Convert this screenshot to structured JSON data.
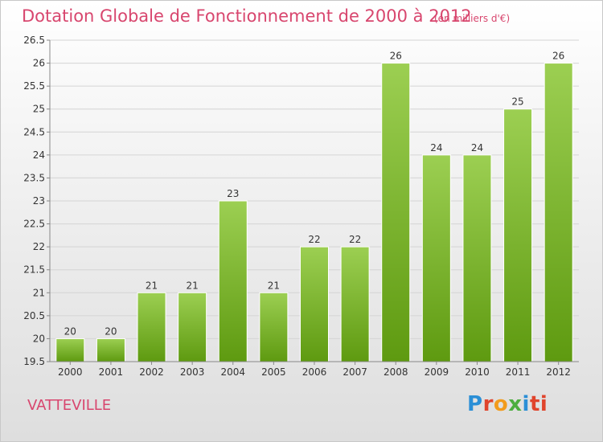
{
  "header": {
    "title": "Dotation Globale de Fonctionnement de 2000 à 2012",
    "subtitle": "(en milliers d'€)"
  },
  "footer": {
    "town": "VATTEVILLE",
    "brand": [
      "P",
      "r",
      "o",
      "x",
      "i",
      "ti"
    ]
  },
  "colors": {
    "bar_top": "#9ccf52",
    "bar_bottom": "#5e9a10",
    "title": "#d8466e",
    "grid": "#d4d4d4"
  },
  "chart_data": {
    "type": "bar",
    "title": "Dotation Globale de Fonctionnement de 2000 à 2012",
    "subtitle": "(en milliers d'€)",
    "categories": [
      "2000",
      "2001",
      "2002",
      "2003",
      "2004",
      "2005",
      "2006",
      "2007",
      "2008",
      "2009",
      "2010",
      "2011",
      "2012"
    ],
    "values": [
      20,
      20,
      21,
      21,
      23,
      21,
      22,
      22,
      26,
      24,
      24,
      25,
      26
    ],
    "data_labels": [
      "20",
      "20",
      "21",
      "21",
      "23",
      "21",
      "22",
      "22",
      "26",
      "24",
      "24",
      "25",
      "26"
    ],
    "yticks": [
      19.5,
      20,
      20.5,
      21,
      21.5,
      22,
      22.5,
      23,
      23.5,
      24,
      24.5,
      25,
      25.5,
      26,
      26.5
    ],
    "ytick_labels": [
      "19.5",
      "20",
      "20.5",
      "21",
      "21.5",
      "22",
      "22.5",
      "23",
      "23.5",
      "24",
      "24.5",
      "25",
      "25.5",
      "26",
      "26.5"
    ],
    "ylim": [
      19.5,
      26.5
    ],
    "grid": true,
    "legend": "none"
  }
}
